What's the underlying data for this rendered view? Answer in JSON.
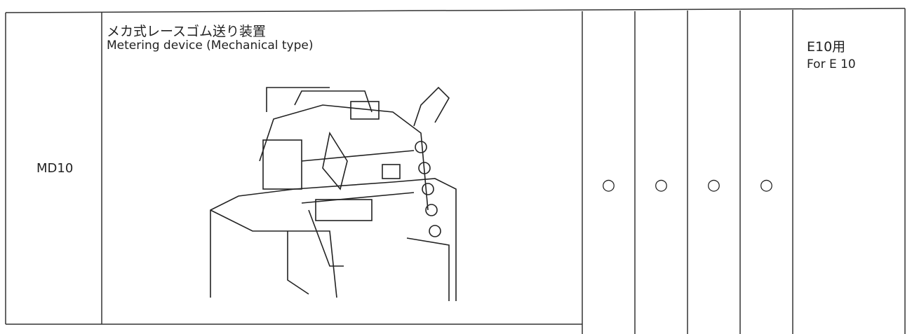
{
  "table": {
    "rows": [
      {
        "code": "MD10",
        "name_ja": "メカ式レースゴム送り装置",
        "name_en": "Metering device (Mechanical type)",
        "marks": [
          "○",
          "○",
          "○",
          "○"
        ],
        "note_ja": "E10用",
        "note_en": "For E 10"
      }
    ]
  }
}
